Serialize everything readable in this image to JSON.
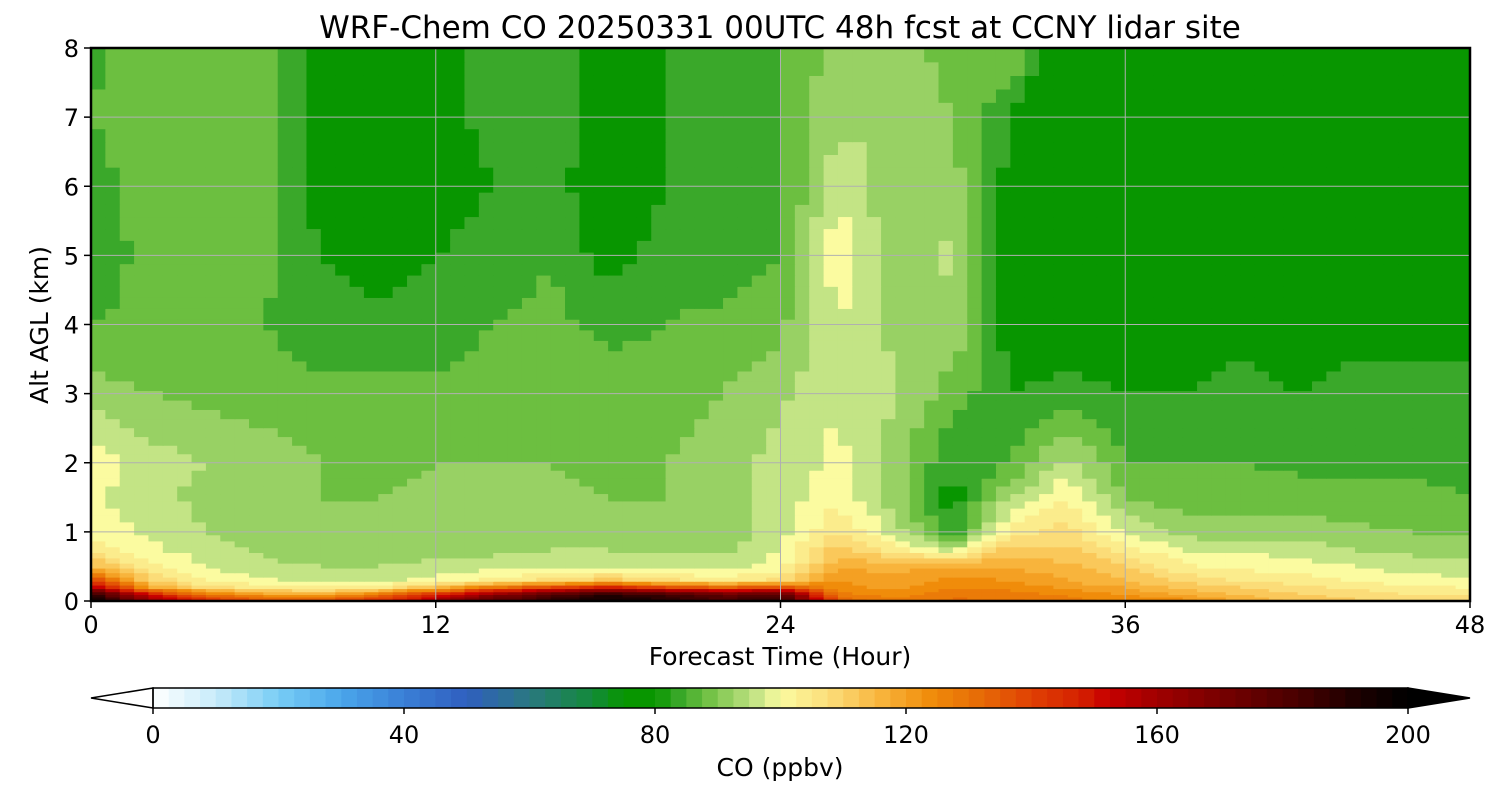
{
  "chart_data": {
    "type": "heatmap",
    "title": "WRF-Chem CO  20250331 00UTC 48h fcst at CCNY lidar site",
    "xlabel": "Forecast Time (Hour)",
    "ylabel": "Alt AGL (km)",
    "x_ticks": [
      0,
      12,
      24,
      36,
      48
    ],
    "y_ticks": [
      0,
      1,
      2,
      3,
      4,
      5,
      6,
      7,
      8
    ],
    "xlim": [
      0,
      48
    ],
    "ylim": [
      0,
      8
    ],
    "grid": true,
    "colorbar": {
      "label": "CO  (ppbv)",
      "ticks": [
        0,
        40,
        80,
        120,
        160,
        200
      ],
      "range": [
        0,
        200
      ],
      "extend": "both",
      "orientation": "horizontal",
      "colors": [
        {
          "value": 0,
          "color": "#ffffff"
        },
        {
          "value": 10,
          "color": "#c8ebfa"
        },
        {
          "value": 20,
          "color": "#78cdf5"
        },
        {
          "value": 30,
          "color": "#4aa6eb"
        },
        {
          "value": 40,
          "color": "#3a7fd6"
        },
        {
          "value": 50,
          "color": "#305fbf"
        },
        {
          "value": 60,
          "color": "#2a7880"
        },
        {
          "value": 70,
          "color": "#138a3a"
        },
        {
          "value": 75,
          "color": "#089600"
        },
        {
          "value": 80,
          "color": "#089600"
        },
        {
          "value": 84,
          "color": "#3aa82a"
        },
        {
          "value": 88,
          "color": "#6cbf40"
        },
        {
          "value": 92,
          "color": "#98d164"
        },
        {
          "value": 96,
          "color": "#c3e485"
        },
        {
          "value": 100,
          "color": "#fbfba0"
        },
        {
          "value": 108,
          "color": "#fbdc78"
        },
        {
          "value": 116,
          "color": "#f8b43c"
        },
        {
          "value": 124,
          "color": "#f08c0a"
        },
        {
          "value": 132,
          "color": "#e66a06"
        },
        {
          "value": 140,
          "color": "#e04004"
        },
        {
          "value": 148,
          "color": "#d42000"
        },
        {
          "value": 152,
          "color": "#c80000"
        },
        {
          "value": 160,
          "color": "#a00000"
        },
        {
          "value": 170,
          "color": "#780000"
        },
        {
          "value": 182,
          "color": "#4a0000"
        },
        {
          "value": 192,
          "color": "#1c0000"
        },
        {
          "value": 200,
          "color": "#000000"
        }
      ]
    },
    "x": [
      0,
      2,
      4,
      6,
      8,
      10,
      12,
      14,
      16,
      18,
      20,
      22,
      24,
      26,
      28,
      30,
      32,
      34,
      36,
      38,
      40,
      42,
      44,
      46,
      48
    ],
    "y": [
      0.0,
      0.1,
      0.2,
      0.3,
      0.5,
      0.75,
      1.0,
      1.5,
      2.0,
      3.0,
      4.0,
      5.0,
      6.0,
      7.0,
      8.0
    ],
    "z": [
      [
        200,
        168,
        150,
        143,
        141,
        150,
        165,
        180,
        190,
        196,
        192,
        185,
        190,
        134,
        128,
        131,
        131,
        128,
        126,
        125,
        118,
        114,
        112,
        110,
        110
      ],
      [
        190,
        150,
        128,
        120,
        118,
        128,
        145,
        165,
        180,
        190,
        185,
        175,
        180,
        128,
        124,
        129,
        128,
        125,
        122,
        118,
        114,
        110,
        108,
        106,
        105
      ],
      [
        160,
        120,
        108,
        104,
        103,
        105,
        115,
        130,
        140,
        150,
        140,
        135,
        140,
        124,
        121,
        126,
        125,
        121,
        118,
        113,
        110,
        107,
        105,
        103,
        102
      ],
      [
        140,
        110,
        102,
        99,
        97,
        97,
        100,
        104,
        108,
        112,
        108,
        104,
        108,
        122,
        119,
        123,
        122,
        118,
        114,
        109,
        106,
        104,
        102,
        100,
        99
      ],
      [
        115,
        103,
        98,
        95,
        94,
        94,
        95,
        96,
        97,
        98,
        97,
        96,
        100,
        118,
        116,
        119,
        118,
        115,
        110,
        103,
        101,
        100,
        98,
        96,
        95
      ],
      [
        105,
        99,
        96,
        93,
        92,
        92,
        93,
        93,
        94,
        94,
        93,
        93,
        98,
        112,
        104,
        96,
        112,
        111,
        104,
        98,
        97,
        96,
        94,
        93,
        92
      ],
      [
        101,
        97,
        94,
        92,
        91,
        91,
        92,
        92,
        92,
        92,
        91,
        92,
        96,
        106,
        96,
        82,
        104,
        108,
        98,
        92,
        92,
        92,
        91,
        90,
        89
      ],
      [
        99,
        95,
        93,
        91,
        90,
        90,
        91,
        91,
        91,
        90,
        90,
        92,
        96,
        101,
        92,
        80,
        94,
        102,
        90,
        88,
        88,
        88,
        87,
        87,
        86
      ],
      [
        101,
        96,
        94,
        92,
        90,
        89,
        90,
        90,
        90,
        89,
        90,
        92,
        96,
        99,
        92,
        82,
        86,
        96,
        86,
        86,
        86,
        85,
        85,
        85,
        85
      ],
      [
        92,
        90,
        89,
        88,
        87,
        87,
        87,
        88,
        89,
        88,
        88,
        90,
        93,
        98,
        94,
        88,
        82,
        83,
        82,
        82,
        83,
        82,
        83,
        83,
        83
      ],
      [
        86,
        87,
        86,
        86,
        84,
        83,
        84,
        86,
        87,
        85,
        86,
        87,
        89,
        98,
        93,
        93,
        80,
        80,
        80,
        80,
        81,
        80,
        81,
        81,
        81
      ],
      [
        84,
        87,
        86,
        87,
        82,
        80,
        82,
        84,
        86,
        80,
        84,
        84,
        86,
        101,
        90,
        95,
        79,
        78,
        79,
        79,
        80,
        79,
        80,
        80,
        80
      ],
      [
        84,
        88,
        86,
        88,
        80,
        78,
        80,
        82,
        84,
        78,
        82,
        82,
        85,
        97,
        92,
        92,
        80,
        75,
        79,
        79,
        80,
        79,
        80,
        80,
        80
      ],
      [
        86,
        89,
        87,
        89,
        81,
        79,
        81,
        83,
        84,
        80,
        82,
        83,
        86,
        93,
        94,
        90,
        82,
        74,
        79,
        78,
        79,
        78,
        79,
        78,
        80
      ],
      [
        85,
        88,
        86,
        88,
        80,
        79,
        81,
        83,
        84,
        80,
        82,
        83,
        86,
        92,
        92,
        88,
        90,
        76,
        79,
        78,
        79,
        77,
        78,
        77,
        80
      ]
    ]
  }
}
